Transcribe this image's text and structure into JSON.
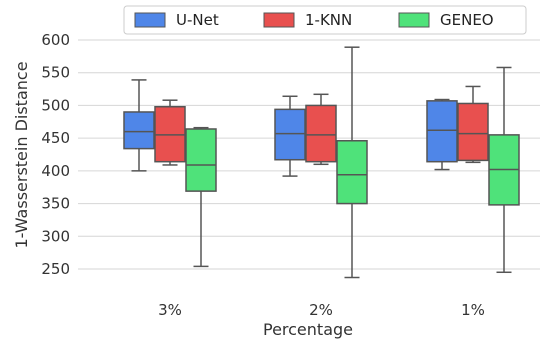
{
  "chart_data": {
    "type": "box",
    "categories": [
      "3%",
      "2%",
      "1%"
    ],
    "xlabel": "Percentage",
    "ylabel": "1-Wasserstein Distance",
    "ylim": [
      240,
      600
    ],
    "yticks": [
      250,
      300,
      350,
      400,
      450,
      500,
      550,
      600
    ],
    "grid": "horizontal",
    "legend_position": "top-center",
    "series": [
      {
        "name": "U-Net",
        "color": "#4f86e8",
        "boxes": [
          {
            "whisker_low": 400,
            "q1": 434,
            "median": 460,
            "q3": 490,
            "whisker_high": 539
          },
          {
            "whisker_low": 392,
            "q1": 417,
            "median": 457,
            "q3": 494,
            "whisker_high": 514
          },
          {
            "whisker_low": 402,
            "q1": 414,
            "median": 462,
            "q3": 507,
            "whisker_high": 509
          }
        ]
      },
      {
        "name": "1-KNN",
        "color": "#e8504f",
        "boxes": [
          {
            "whisker_low": 409,
            "q1": 414,
            "median": 455,
            "q3": 498,
            "whisker_high": 508
          },
          {
            "whisker_low": 410,
            "q1": 414,
            "median": 455,
            "q3": 500,
            "whisker_high": 517
          },
          {
            "whisker_low": 413,
            "q1": 416,
            "median": 457,
            "q3": 503,
            "whisker_high": 529
          }
        ]
      },
      {
        "name": "GENEO",
        "color": "#4fe27a",
        "boxes": [
          {
            "whisker_low": 254,
            "q1": 369,
            "median": 409,
            "q3": 464,
            "whisker_high": 466
          },
          {
            "whisker_low": 237,
            "q1": 350,
            "median": 394,
            "q3": 446,
            "whisker_high": 589
          },
          {
            "whisker_low": 245,
            "q1": 348,
            "median": 402,
            "q3": 455,
            "whisker_high": 558
          }
        ]
      }
    ]
  }
}
